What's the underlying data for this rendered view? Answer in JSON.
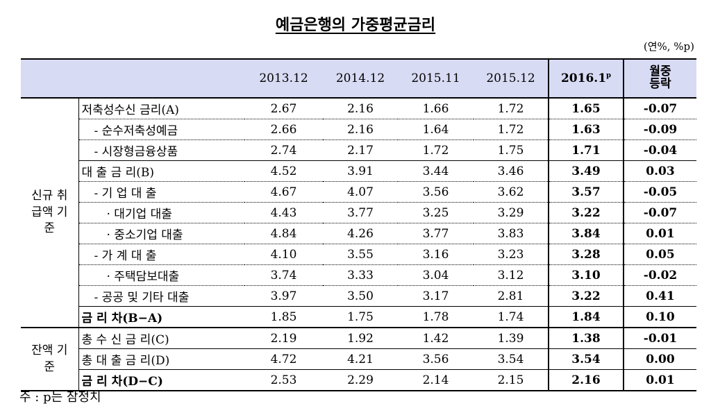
{
  "title": "예금은행의 가중평균금리",
  "unit": "(연%, %p)",
  "table": {
    "columns": [
      "2013.12",
      "2014.12",
      "2015.11",
      "2015.12",
      "2016.1",
      "월중 등락"
    ],
    "preliminary_mark": "p",
    "highlight_column": 4,
    "groups": [
      {
        "label": "신규 취급액 기준",
        "rows": [
          {
            "label": "저축성수신 금리(A)",
            "values": [
              "2.67",
              "2.16",
              "1.66",
              "1.72",
              "1.65",
              "-0.07"
            ]
          },
          {
            "label": "- 순수저축성예금",
            "values": [
              "2.66",
              "2.16",
              "1.64",
              "1.72",
              "1.63",
              "-0.09"
            ]
          },
          {
            "label": "- 시장형금융상품",
            "values": [
              "2.74",
              "2.17",
              "1.72",
              "1.75",
              "1.71",
              "-0.04"
            ]
          },
          {
            "label": "대 출 금 리(B)",
            "values": [
              "4.52",
              "3.91",
              "3.44",
              "3.46",
              "3.49",
              "0.03"
            ]
          },
          {
            "label": "- 기 업 대 출",
            "values": [
              "4.67",
              "4.07",
              "3.56",
              "3.62",
              "3.57",
              "-0.05"
            ]
          },
          {
            "label": "· 대기업 대출",
            "values": [
              "4.43",
              "3.77",
              "3.25",
              "3.29",
              "3.22",
              "-0.07"
            ]
          },
          {
            "label": "· 중소기업 대출",
            "values": [
              "4.84",
              "4.26",
              "3.77",
              "3.83",
              "3.84",
              "0.01"
            ]
          },
          {
            "label": "- 가 계 대 출",
            "values": [
              "4.10",
              "3.55",
              "3.16",
              "3.23",
              "3.28",
              "0.05"
            ]
          },
          {
            "label": "· 주택담보대출",
            "values": [
              "3.74",
              "3.33",
              "3.04",
              "3.12",
              "3.10",
              "-0.02"
            ]
          },
          {
            "label": "- 공공 및 기타 대출",
            "values": [
              "3.97",
              "3.50",
              "3.17",
              "2.81",
              "3.22",
              "0.41"
            ]
          },
          {
            "label": "금 리 차(B−A)",
            "values": [
              "1.85",
              "1.75",
              "1.78",
              "1.74",
              "1.84",
              "0.10"
            ]
          }
        ]
      },
      {
        "label": "잔액 기준",
        "rows": [
          {
            "label": "총 수 신 금 리(C)",
            "values": [
              "2.19",
              "1.92",
              "1.42",
              "1.39",
              "1.38",
              "-0.01"
            ]
          },
          {
            "label": "총 대 출 금 리(D)",
            "values": [
              "4.72",
              "4.21",
              "3.56",
              "3.54",
              "3.54",
              "0.00"
            ]
          },
          {
            "label": "금 리 차(D−C)",
            "values": [
              "2.53",
              "2.29",
              "2.14",
              "2.15",
              "2.16",
              "0.01"
            ]
          }
        ]
      }
    ]
  },
  "note": "주 : p는 잠정치"
}
